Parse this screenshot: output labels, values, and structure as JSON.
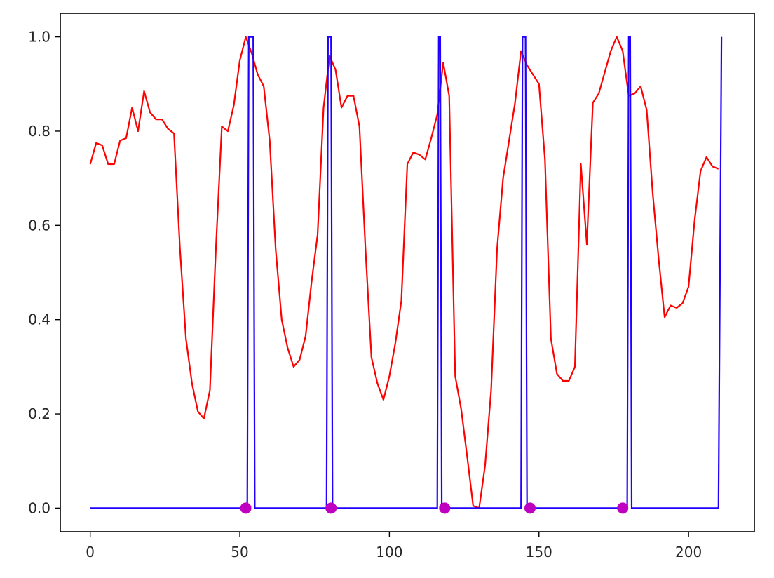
{
  "chart_data": {
    "type": "line",
    "title": "",
    "xlabel": "",
    "ylabel": "",
    "xlim": [
      -10,
      222
    ],
    "ylim": [
      -0.05,
      1.05
    ],
    "x_ticks": [
      0,
      50,
      100,
      150,
      200
    ],
    "x_tick_labels": [
      "0",
      "50",
      "100",
      "150",
      "200"
    ],
    "y_ticks": [
      0.0,
      0.2,
      0.4,
      0.6,
      0.8,
      1.0
    ],
    "y_tick_labels": [
      "0.0",
      "0.2",
      "0.4",
      "0.6",
      "0.8",
      "1.0"
    ],
    "grid": false,
    "legend": "none",
    "series": [
      {
        "color": "#ff0000",
        "x": [
          0,
          2,
          4,
          6,
          8,
          10,
          12,
          14,
          16,
          18,
          20,
          22,
          24,
          26,
          28,
          30,
          32,
          34,
          36,
          38,
          40,
          42,
          44,
          46,
          48,
          50,
          52,
          54,
          56,
          58,
          60,
          62,
          64,
          66,
          68,
          70,
          72,
          74,
          76,
          78,
          80,
          82,
          84,
          86,
          88,
          90,
          92,
          94,
          96,
          98,
          100,
          102,
          104,
          106,
          108,
          110,
          112,
          114,
          116,
          118,
          120,
          122,
          124,
          126,
          128,
          130,
          132,
          134,
          136,
          138,
          140,
          142,
          144,
          146,
          148,
          150,
          152,
          154,
          156,
          158,
          160,
          162,
          164,
          166,
          168,
          170,
          172,
          174,
          176,
          178,
          180,
          182,
          184,
          186,
          188,
          190,
          192,
          194,
          196,
          198,
          200,
          202,
          204,
          206,
          208,
          210
        ],
        "y": [
          0.73,
          0.775,
          0.77,
          0.73,
          0.73,
          0.78,
          0.785,
          0.85,
          0.8,
          0.885,
          0.84,
          0.825,
          0.825,
          0.805,
          0.795,
          0.55,
          0.36,
          0.265,
          0.205,
          0.19,
          0.25,
          0.55,
          0.81,
          0.8,
          0.855,
          0.95,
          1.0,
          0.965,
          0.92,
          0.895,
          0.78,
          0.55,
          0.4,
          0.34,
          0.3,
          0.315,
          0.365,
          0.48,
          0.58,
          0.85,
          0.96,
          0.93,
          0.85,
          0.875,
          0.875,
          0.81,
          0.55,
          0.32,
          0.265,
          0.23,
          0.28,
          0.35,
          0.44,
          0.73,
          0.755,
          0.75,
          0.74,
          0.785,
          0.835,
          0.945,
          0.875,
          0.28,
          0.21,
          0.11,
          0.005,
          0.0,
          0.09,
          0.25,
          0.55,
          0.7,
          0.78,
          0.86,
          0.97,
          0.94,
          0.92,
          0.9,
          0.74,
          0.36,
          0.285,
          0.27,
          0.27,
          0.3,
          0.73,
          0.56,
          0.86,
          0.88,
          0.925,
          0.97,
          1.0,
          0.97,
          0.875,
          0.88,
          0.895,
          0.845,
          0.67,
          0.53,
          0.405,
          0.43,
          0.425,
          0.435,
          0.47,
          0.61,
          0.715,
          0.745,
          0.725,
          0.72
        ]
      },
      {
        "color": "#2000ff",
        "x": [
          0,
          52.5,
          53,
          54,
          54.5,
          210,
          210.2,
          211
        ],
        "y": [
          0,
          0,
          1,
          1,
          0,
          0,
          1,
          1
        ],
        "pulses": [
          {
            "start": 52.5,
            "end": 55
          },
          {
            "start": 79,
            "end": 81
          },
          {
            "start": 116,
            "end": 117.5
          },
          {
            "start": 144,
            "end": 146
          },
          {
            "start": 179.5,
            "end": 181
          }
        ],
        "final_rise": 211,
        "start_x": 0,
        "end_x": 210
      }
    ],
    "markers": {
      "color": "#c000c0",
      "x": [
        52,
        80.5,
        118.5,
        147,
        178
      ],
      "y": [
        0,
        0,
        0,
        0,
        0
      ]
    }
  }
}
